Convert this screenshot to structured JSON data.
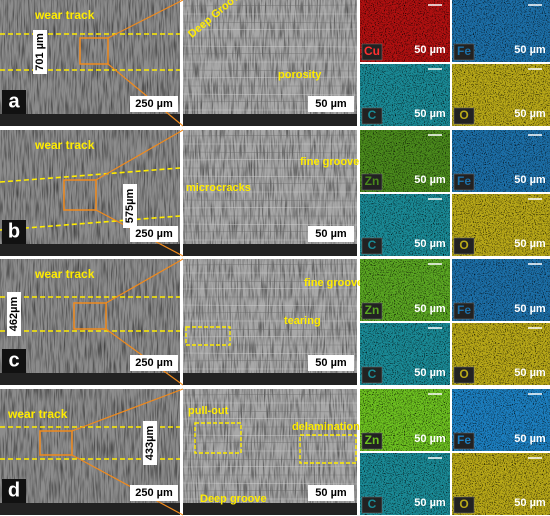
{
  "rows": [
    {
      "label": "a",
      "wear_track": "wear track",
      "track_width": "701 µm",
      "scale_overview": "250 µm",
      "annotations": [
        "Deep Grooves",
        "porosity"
      ],
      "scale_detail": "50 µm",
      "maps": [
        {
          "element": "Cu",
          "color": "#b01010",
          "scale": "50 µm"
        },
        {
          "element": "Fe",
          "color": "#1c6fa8",
          "scale": "50 µm"
        },
        {
          "element": "C",
          "color": "#1a8a96",
          "scale": "50 µm"
        },
        {
          "element": "O",
          "color": "#b8a818",
          "scale": "50 µm"
        }
      ]
    },
    {
      "label": "b",
      "wear_track": "wear track",
      "track_width": "575µm",
      "scale_overview": "250 µm",
      "annotations": [
        "fine grooves",
        "microcracks"
      ],
      "scale_detail": "50 µm",
      "maps": [
        {
          "element": "Zn",
          "color": "#4a8a1c",
          "scale": "50 µm"
        },
        {
          "element": "Fe",
          "color": "#1c6fa8",
          "scale": "50 µm"
        },
        {
          "element": "C",
          "color": "#1a8a96",
          "scale": "50 µm"
        },
        {
          "element": "O",
          "color": "#b8a818",
          "scale": "50 µm"
        }
      ]
    },
    {
      "label": "c",
      "wear_track": "wear track",
      "track_width": "462µm",
      "scale_overview": "250 µm",
      "annotations": [
        "fine grooves",
        "tearing"
      ],
      "scale_detail": "50 µm",
      "maps": [
        {
          "element": "Zn",
          "color": "#5aa622",
          "scale": "50 µm"
        },
        {
          "element": "Fe",
          "color": "#1c6fa8",
          "scale": "50 µm"
        },
        {
          "element": "C",
          "color": "#1a8a96",
          "scale": "50 µm"
        },
        {
          "element": "O",
          "color": "#b8a818",
          "scale": "50 µm"
        }
      ]
    },
    {
      "label": "d",
      "wear_track": "wear track",
      "track_width": "433µm",
      "scale_overview": "250 µm",
      "annotations": [
        "pull-out",
        "delamination",
        "Deep groove"
      ],
      "scale_detail": "50 µm",
      "maps": [
        {
          "element": "Zn",
          "color": "#6cc020",
          "scale": "50 µm"
        },
        {
          "element": "Fe",
          "color": "#1c7fc0",
          "scale": "50 µm"
        },
        {
          "element": "C",
          "color": "#1a8a96",
          "scale": "50 µm"
        },
        {
          "element": "O",
          "color": "#b8a818",
          "scale": "50 µm"
        }
      ]
    }
  ]
}
